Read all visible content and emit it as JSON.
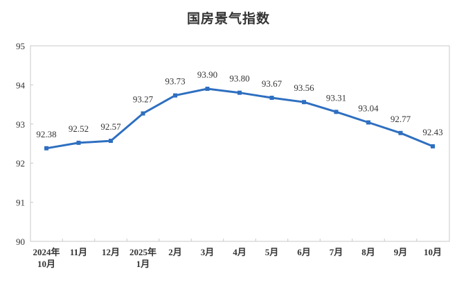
{
  "chart_data": {
    "type": "line",
    "title": "国房景气指数",
    "xlabel": "",
    "ylabel": "",
    "categories": [
      "2024年\n10月",
      "11月",
      "12月",
      "2025年\n1月",
      "2月",
      "3月",
      "4月",
      "5月",
      "6月",
      "7月",
      "8月",
      "9月",
      "10月"
    ],
    "x_labels": [
      [
        "2024年",
        "10月"
      ],
      [
        "11月"
      ],
      [
        "12月"
      ],
      [
        "2025年",
        "1月"
      ],
      [
        "2月"
      ],
      [
        "3月"
      ],
      [
        "4月"
      ],
      [
        "5月"
      ],
      [
        "6月"
      ],
      [
        "7月"
      ],
      [
        "8月"
      ],
      [
        "9月"
      ],
      [
        "10月"
      ]
    ],
    "series": [
      {
        "name": "国房景气指数",
        "values": [
          92.38,
          92.52,
          92.57,
          93.27,
          93.73,
          93.9,
          93.8,
          93.67,
          93.56,
          93.31,
          93.04,
          92.77,
          92.43
        ],
        "labels": [
          "92.38",
          "92.52",
          "92.57",
          "93.27",
          "93.73",
          "93.90",
          "93.80",
          "93.67",
          "93.56",
          "93.31",
          "93.04",
          "92.77",
          "92.43"
        ],
        "color": "#2e6fc0",
        "marker": "square"
      }
    ],
    "ylim": [
      90,
      95
    ],
    "yticks": [
      90,
      91,
      92,
      93,
      94,
      95
    ],
    "grid": false,
    "legend": "none"
  },
  "colors": {
    "line": "#2e6fc0",
    "axis": "#c8c8c8",
    "text": "#333333"
  }
}
